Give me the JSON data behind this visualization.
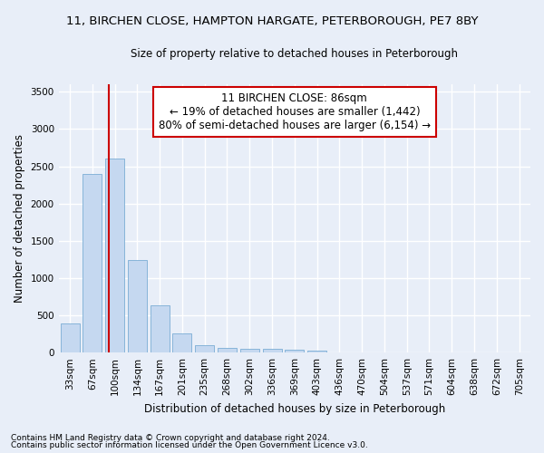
{
  "title_line1": "11, BIRCHEN CLOSE, HAMPTON HARGATE, PETERBOROUGH, PE7 8BY",
  "title_line2": "Size of property relative to detached houses in Peterborough",
  "xlabel": "Distribution of detached houses by size in Peterborough",
  "ylabel": "Number of detached properties",
  "categories": [
    "33sqm",
    "67sqm",
    "100sqm",
    "134sqm",
    "167sqm",
    "201sqm",
    "235sqm",
    "268sqm",
    "302sqm",
    "336sqm",
    "369sqm",
    "403sqm",
    "436sqm",
    "470sqm",
    "504sqm",
    "537sqm",
    "571sqm",
    "604sqm",
    "638sqm",
    "672sqm",
    "705sqm"
  ],
  "values": [
    390,
    2400,
    2600,
    1240,
    640,
    260,
    100,
    60,
    55,
    50,
    40,
    25,
    0,
    0,
    0,
    0,
    0,
    0,
    0,
    0,
    0
  ],
  "bar_color": "#c5d8f0",
  "bar_edge_color": "#7aadd4",
  "vline_x": 1.72,
  "vline_color": "#cc0000",
  "annotation_text": "11 BIRCHEN CLOSE: 86sqm\n← 19% of detached houses are smaller (1,442)\n80% of semi-detached houses are larger (6,154) →",
  "annotation_box_color": "#ffffff",
  "annotation_box_edge_color": "#cc0000",
  "ylim": [
    0,
    3600
  ],
  "yticks": [
    0,
    500,
    1000,
    1500,
    2000,
    2500,
    3000,
    3500
  ],
  "footnote1": "Contains HM Land Registry data © Crown copyright and database right 2024.",
  "footnote2": "Contains public sector information licensed under the Open Government Licence v3.0.",
  "bg_color": "#e8eef8",
  "plot_bg_color": "#e8eef8",
  "grid_color": "#ffffff",
  "title_fontsize": 9.5,
  "subtitle_fontsize": 8.5,
  "tick_fontsize": 7.5,
  "ylabel_fontsize": 8.5,
  "xlabel_fontsize": 8.5,
  "footnote_fontsize": 6.5,
  "annotation_fontsize": 8.5
}
